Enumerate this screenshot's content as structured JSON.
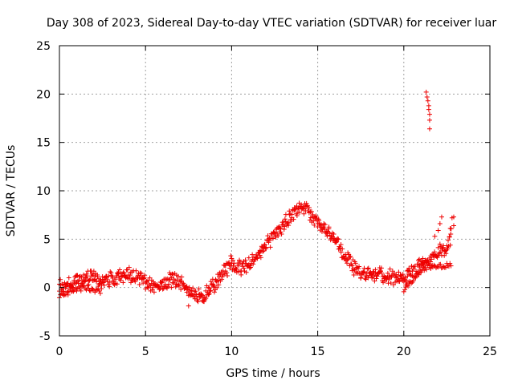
{
  "chart_data": {
    "type": "scatter",
    "title": "Day 308 of 2023, Sidereal Day-to-day VTEC variation (SDTVAR) for receiver luar",
    "xlabel": "GPS time / hours",
    "ylabel": "SDTVAR / TECUs",
    "xlim": [
      0,
      25
    ],
    "ylim": [
      -5,
      25
    ],
    "xticks": [
      0,
      5,
      10,
      15,
      20,
      25
    ],
    "yticks": [
      -5,
      0,
      5,
      10,
      15,
      20,
      25
    ],
    "grid": true,
    "marker": "plus",
    "color": "#ee0000",
    "series": [
      {
        "name": "SDTVAR",
        "trend_points": [
          [
            0.0,
            0.0
          ],
          [
            0.5,
            0.3
          ],
          [
            1.0,
            0.6
          ],
          [
            1.5,
            1.0
          ],
          [
            2.0,
            1.0
          ],
          [
            2.5,
            0.8
          ],
          [
            3.0,
            0.9
          ],
          [
            3.5,
            1.2
          ],
          [
            4.0,
            1.4
          ],
          [
            4.5,
            1.1
          ],
          [
            5.0,
            0.6
          ],
          [
            5.5,
            0.3
          ],
          [
            6.0,
            0.4
          ],
          [
            6.5,
            0.8
          ],
          [
            7.0,
            0.5
          ],
          [
            7.4,
            0.1
          ],
          [
            7.6,
            -0.6
          ],
          [
            8.0,
            -1.0
          ],
          [
            8.5,
            -0.6
          ],
          [
            9.0,
            0.3
          ],
          [
            9.5,
            1.4
          ],
          [
            10.0,
            2.6
          ],
          [
            10.5,
            2.0
          ],
          [
            11.0,
            2.4
          ],
          [
            11.5,
            3.2
          ],
          [
            12.0,
            4.4
          ],
          [
            12.5,
            5.5
          ],
          [
            13.0,
            6.5
          ],
          [
            13.5,
            7.5
          ],
          [
            14.0,
            8.5
          ],
          [
            14.5,
            7.8
          ],
          [
            15.0,
            6.8
          ],
          [
            15.5,
            6.0
          ],
          [
            16.0,
            5.0
          ],
          [
            16.5,
            3.5
          ],
          [
            17.0,
            2.2
          ],
          [
            17.5,
            1.4
          ],
          [
            18.0,
            1.3
          ],
          [
            18.5,
            1.4
          ],
          [
            19.0,
            1.2
          ],
          [
            19.5,
            1.0
          ],
          [
            20.0,
            0.8
          ],
          [
            20.5,
            1.6
          ],
          [
            21.0,
            2.6
          ],
          [
            21.5,
            2.8
          ],
          [
            22.0,
            3.8
          ],
          [
            22.5,
            4.2
          ],
          [
            22.8,
            5.5
          ]
        ],
        "lower_branch_points": [
          [
            0.0,
            -0.9
          ],
          [
            0.5,
            -0.5
          ],
          [
            1.0,
            -0.2
          ],
          [
            1.5,
            0.0
          ],
          [
            2.0,
            -0.3
          ],
          [
            2.5,
            -0.4
          ],
          [
            20.0,
            -0.2
          ],
          [
            20.5,
            0.8
          ],
          [
            21.0,
            1.8
          ],
          [
            21.5,
            2.2
          ],
          [
            22.0,
            2.2
          ],
          [
            22.5,
            2.2
          ],
          [
            22.8,
            2.6
          ]
        ],
        "outlier_points": [
          [
            21.3,
            20.2
          ],
          [
            21.35,
            19.7
          ],
          [
            21.4,
            19.3
          ],
          [
            21.45,
            18.8
          ],
          [
            21.45,
            18.4
          ],
          [
            21.5,
            17.9
          ],
          [
            21.5,
            17.3
          ],
          [
            21.5,
            16.4
          ]
        ],
        "scatter_points": [
          [
            7.5,
            -1.9
          ],
          [
            20.9,
            2.9
          ],
          [
            21.1,
            3.0
          ],
          [
            21.8,
            5.3
          ],
          [
            22.0,
            5.9
          ],
          [
            22.1,
            6.6
          ],
          [
            22.2,
            7.3
          ],
          [
            22.7,
            6.1
          ],
          [
            22.8,
            7.2
          ],
          [
            22.9,
            7.3
          ],
          [
            22.9,
            6.4
          ]
        ]
      }
    ]
  }
}
